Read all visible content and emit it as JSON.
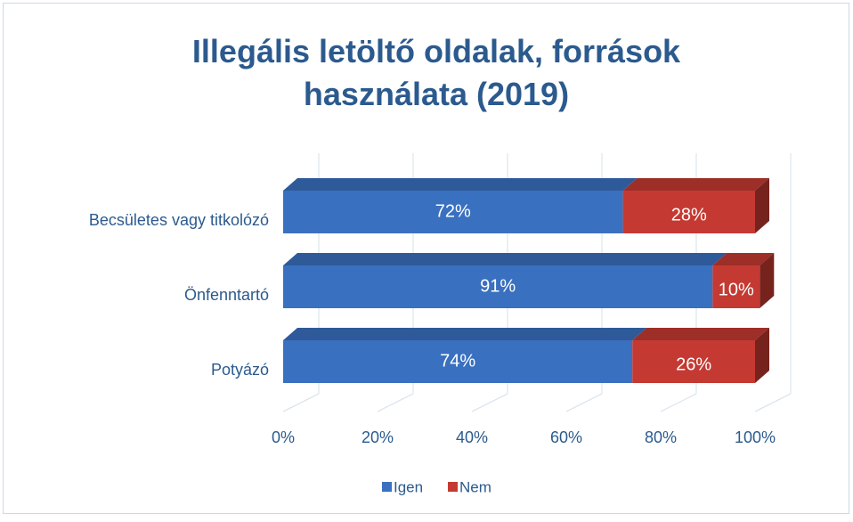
{
  "chart_data": {
    "type": "stacked-bar-3d",
    "orientation": "horizontal",
    "title": "Illegális letöltő oldalak, források használata (2019)",
    "categories": [
      "Becsületes vagy titkolózó",
      "Önfenntartó",
      "Potyázó"
    ],
    "series": [
      {
        "name": "Igen",
        "color": "#3a70c0",
        "values": [
          72,
          91,
          74
        ],
        "value_labels": [
          "72%",
          "91%",
          "74%"
        ]
      },
      {
        "name": "Nem",
        "color": "#c43a32",
        "values": [
          28,
          10,
          26
        ],
        "value_labels": [
          "28%",
          "10%",
          "26%"
        ]
      }
    ],
    "xlim": [
      0,
      100
    ],
    "xticks": [
      {
        "value": 0,
        "label": "0%"
      },
      {
        "value": 20,
        "label": "20%"
      },
      {
        "value": 40,
        "label": "40%"
      },
      {
        "value": 60,
        "label": "60%"
      },
      {
        "value": 80,
        "label": "80%"
      },
      {
        "value": 100,
        "label": "100%"
      }
    ],
    "grid": true,
    "legend": "bottom"
  }
}
